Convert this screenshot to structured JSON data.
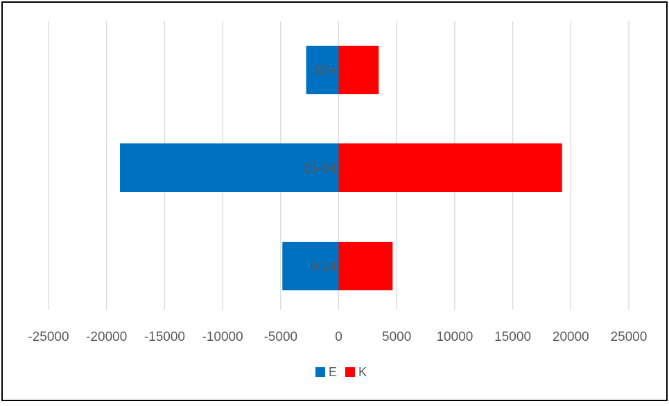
{
  "chart_data": {
    "type": "bar",
    "orientation": "horizontal",
    "stacked": true,
    "categories": [
      "0-14",
      "15-64",
      "65+"
    ],
    "series": [
      {
        "name": "E",
        "color": "#0070C0",
        "values": [
          -4850,
          -18850,
          -2800
        ]
      },
      {
        "name": "K",
        "color": "#FF0000",
        "values": [
          4650,
          19250,
          3450
        ]
      }
    ],
    "xlim": [
      -25000,
      25000
    ],
    "x_ticks": [
      -25000,
      -20000,
      -15000,
      -10000,
      -5000,
      0,
      5000,
      10000,
      15000,
      20000,
      25000
    ],
    "x_tick_labels": [
      "-25000",
      "-20000",
      "-15000",
      "-10000",
      "-5000",
      "0",
      "5000",
      "10000",
      "15000",
      "20000",
      "25000"
    ],
    "grid": true,
    "legend_position": "bottom",
    "title": "",
    "xlabel": "",
    "ylabel": ""
  }
}
